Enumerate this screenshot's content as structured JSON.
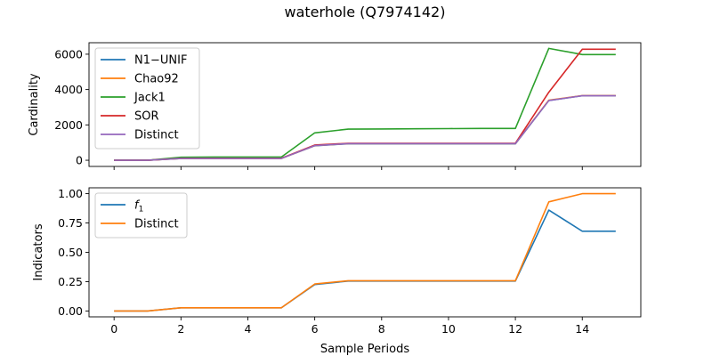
{
  "chart_data": {
    "title": "waterhole (Q7974142)",
    "xlabel": "Sample Periods",
    "x": [
      0,
      1,
      2,
      3,
      4,
      5,
      6,
      7,
      8,
      9,
      10,
      11,
      12,
      13,
      14,
      15
    ],
    "xlim": [
      -0.75,
      15.75
    ],
    "xticks": [
      0,
      2,
      4,
      6,
      8,
      10,
      12,
      14
    ],
    "panels": [
      {
        "type": "line",
        "ylabel": "Cardinality",
        "ylim": [
          -350,
          6650
        ],
        "yticks": [
          0,
          2000,
          4000,
          6000
        ],
        "ytick_labels": [
          "0",
          "2000",
          "4000",
          "6000"
        ],
        "legend_position": "upper-left",
        "series": [
          {
            "name": "N1−UNIF",
            "color": "#1f77b4",
            "values": [
              0,
              0,
              100,
              100,
              100,
              100,
              820,
              930,
              930,
              930,
              930,
              930,
              930,
              3380,
              3650,
              3650
            ]
          },
          {
            "name": "Chao92",
            "color": "#ff7f0e",
            "values": [
              0,
              0,
              100,
              100,
              100,
              100,
              830,
              940,
              940,
              940,
              940,
              940,
              940,
              3400,
              3660,
              3660
            ]
          },
          {
            "name": "Jack1",
            "color": "#2ca02c",
            "values": [
              0,
              0,
              170,
              180,
              180,
              180,
              1550,
              1760,
              1770,
              1780,
              1790,
              1800,
              1800,
              6330,
              5980,
              5980
            ]
          },
          {
            "name": "SOR",
            "color": "#d62728",
            "values": [
              0,
              0,
              110,
              110,
              110,
              110,
              860,
              960,
              960,
              960,
              960,
              960,
              960,
              3850,
              6280,
              6280
            ]
          },
          {
            "name": "Distinct",
            "color": "#9467bd",
            "values": [
              0,
              0,
              100,
              100,
              100,
              100,
              830,
              940,
              940,
              940,
              940,
              940,
              940,
              3380,
              3650,
              3650
            ]
          }
        ]
      },
      {
        "type": "line",
        "ylabel": "Indicators",
        "ylim": [
          -0.05,
          1.05
        ],
        "yticks": [
          0,
          0.25,
          0.5,
          0.75,
          1.0
        ],
        "ytick_labels": [
          "0.00",
          "0.25",
          "0.50",
          "0.75",
          "1.00"
        ],
        "legend_position": "upper-left",
        "series": [
          {
            "name": "f",
            "name_subscript": "1",
            "color": "#1f77b4",
            "values": [
              0.0,
              0.0,
              0.027,
              0.027,
              0.027,
              0.027,
              0.225,
              0.255,
              0.255,
              0.255,
              0.255,
              0.255,
              0.255,
              0.86,
              0.68,
              0.68
            ]
          },
          {
            "name": "Distinct",
            "color": "#ff7f0e",
            "values": [
              0.0,
              0.0,
              0.027,
              0.027,
              0.027,
              0.027,
              0.23,
              0.258,
              0.258,
              0.258,
              0.258,
              0.258,
              0.258,
              0.93,
              1.0,
              1.0
            ]
          }
        ]
      }
    ]
  }
}
